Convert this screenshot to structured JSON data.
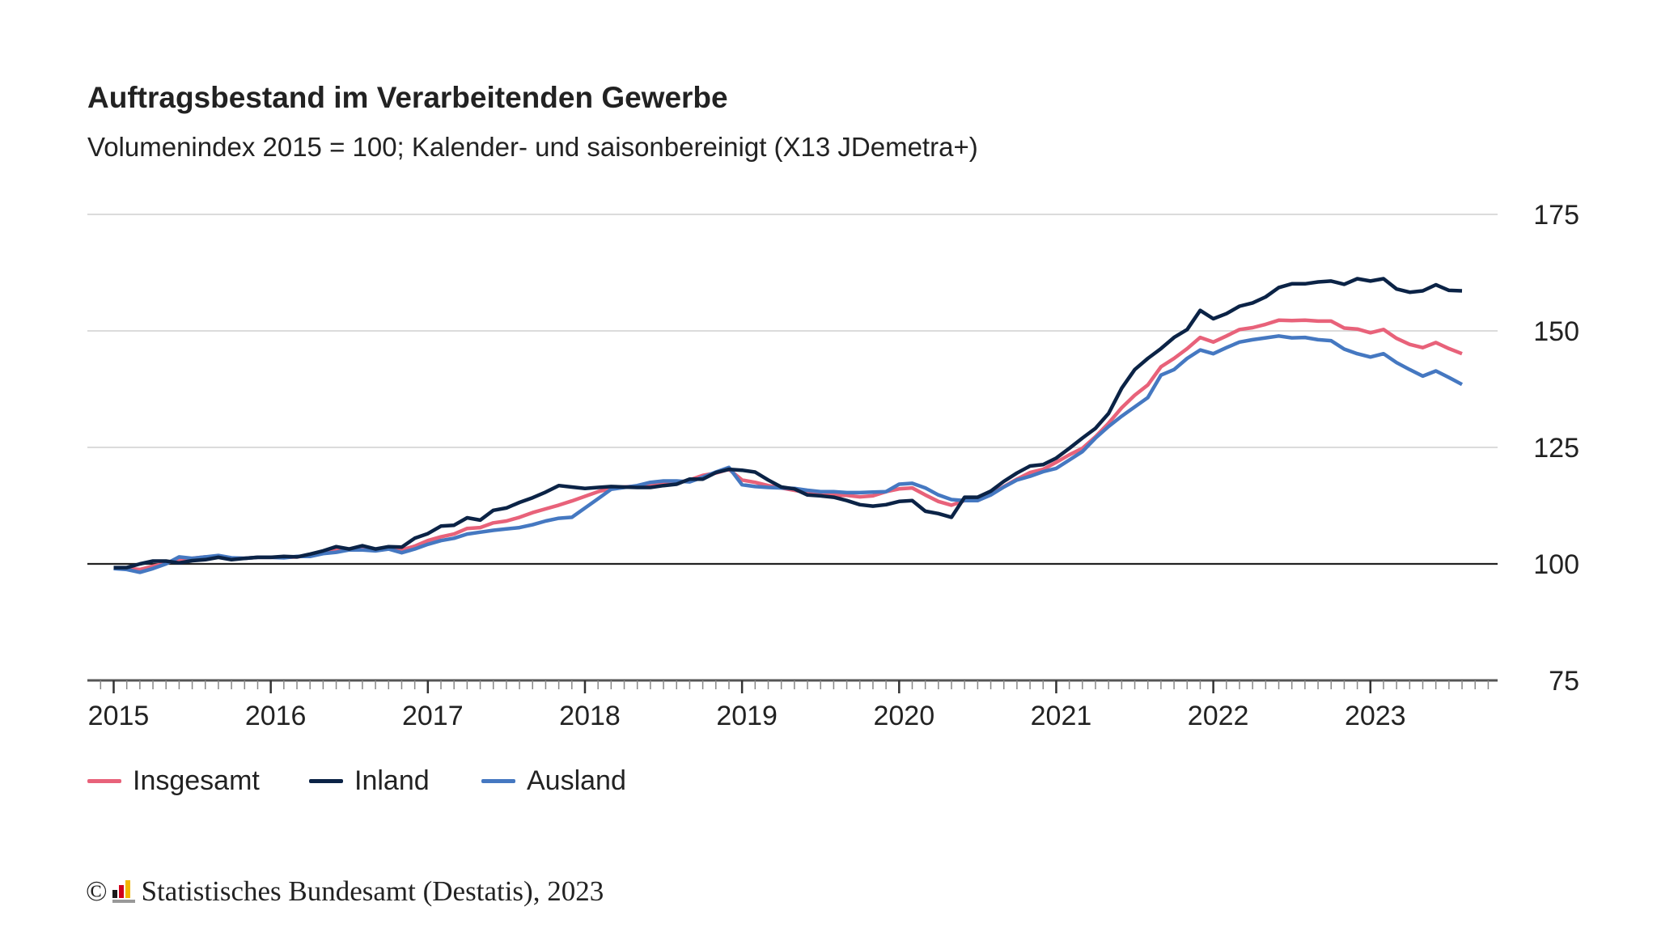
{
  "chart_data": {
    "type": "line",
    "title": "Auftragsbestand im Verarbeitenden Gewerbe",
    "subtitle": "Volumenindex 2015 = 100; Kalender- und saisonbereinigt (X13 JDemetra+)",
    "x_start": "2015-01",
    "x_end": "2023-08",
    "x_frequency": "monthly",
    "x_tick_labels": [
      "2015",
      "2016",
      "2017",
      "2018",
      "2019",
      "2020",
      "2021",
      "2022",
      "2023"
    ],
    "y_tick_labels": [
      "175",
      "150",
      "125",
      "100",
      "75"
    ],
    "y_ticks": [
      175,
      150,
      125,
      100,
      75
    ],
    "ylim": [
      75,
      175
    ],
    "reference_line": 100,
    "grid": true,
    "legend_position": "bottom-left",
    "series": [
      {
        "name": "Insgesamt",
        "color": "#e8627a",
        "values": [
          99.0,
          99.0,
          98.8,
          99.5,
          100.2,
          100.9,
          101.2,
          101.5,
          101.5,
          101.2,
          101.2,
          101.4,
          101.4,
          101.4,
          101.5,
          101.9,
          102.5,
          103.0,
          103.1,
          103.3,
          103.0,
          103.4,
          103.0,
          103.8,
          105.0,
          105.8,
          106.4,
          107.6,
          107.8,
          108.8,
          109.2,
          110.0,
          111.0,
          111.8,
          112.6,
          113.5,
          114.5,
          115.5,
          116.2,
          116.5,
          116.7,
          117.0,
          117.2,
          117.4,
          118.0,
          119.0,
          119.5,
          120.3,
          118.0,
          117.5,
          116.8,
          116.3,
          115.8,
          115.3,
          115.0,
          114.7,
          114.7,
          114.4,
          114.6,
          115.5,
          116.1,
          116.3,
          114.8,
          113.4,
          112.6,
          113.6,
          113.6,
          115.0,
          116.6,
          118.2,
          119.6,
          120.3,
          121.8,
          123.4,
          124.8,
          127.3,
          130.2,
          133.5,
          136.2,
          138.4,
          142.3,
          144.1,
          146.2,
          148.6,
          147.6,
          148.9,
          150.3,
          150.7,
          151.4,
          152.3,
          152.2,
          152.3,
          152.1,
          152.1,
          150.6,
          150.4,
          149.6,
          150.3,
          148.4,
          147.1,
          146.4,
          147.5,
          146.2,
          145.1
        ]
      },
      {
        "name": "Inland",
        "color": "#0b2346",
        "values": [
          99.2,
          99.2,
          100.0,
          100.6,
          100.6,
          100.2,
          100.7,
          100.9,
          101.4,
          100.9,
          101.2,
          101.4,
          101.4,
          101.6,
          101.5,
          102.1,
          102.8,
          103.7,
          103.2,
          103.9,
          103.2,
          103.7,
          103.6,
          105.5,
          106.5,
          108.1,
          108.3,
          109.9,
          109.4,
          111.5,
          112.0,
          113.2,
          114.2,
          115.4,
          116.8,
          116.5,
          116.2,
          116.4,
          116.6,
          116.5,
          116.4,
          116.4,
          116.8,
          117.1,
          118.2,
          118.2,
          119.6,
          120.3,
          120.1,
          119.7,
          118.0,
          116.5,
          116.1,
          114.8,
          114.6,
          114.3,
          113.6,
          112.7,
          112.4,
          112.7,
          113.4,
          113.6,
          111.3,
          110.8,
          110.0,
          114.3,
          114.3,
          115.6,
          117.7,
          119.5,
          121.0,
          121.3,
          122.7,
          124.8,
          127.0,
          129.1,
          132.3,
          137.7,
          141.7,
          144.1,
          146.2,
          148.6,
          150.3,
          154.4,
          152.6,
          153.7,
          155.3,
          156.0,
          157.3,
          159.3,
          160.1,
          160.1,
          160.5,
          160.7,
          160.0,
          161.2,
          160.7,
          161.2,
          159.0,
          158.3,
          158.6,
          159.9,
          158.7,
          158.6
        ]
      },
      {
        "name": "Ausland",
        "color": "#4578c1",
        "values": [
          99.0,
          98.8,
          98.2,
          99.0,
          100.0,
          101.5,
          101.2,
          101.5,
          101.8,
          101.3,
          101.2,
          101.4,
          101.4,
          101.3,
          101.6,
          101.6,
          102.2,
          102.5,
          103.0,
          103.0,
          102.8,
          103.2,
          102.4,
          103.2,
          104.2,
          105.0,
          105.5,
          106.4,
          106.8,
          107.2,
          107.5,
          107.8,
          108.4,
          109.2,
          109.8,
          110.0,
          112.0,
          114.0,
          116.0,
          116.4,
          116.8,
          117.5,
          117.8,
          117.8,
          117.6,
          118.6,
          119.7,
          120.7,
          117.0,
          116.6,
          116.4,
          116.3,
          116.2,
          115.8,
          115.5,
          115.5,
          115.3,
          115.3,
          115.4,
          115.5,
          117.1,
          117.3,
          116.3,
          114.8,
          113.8,
          113.6,
          113.6,
          114.8,
          116.5,
          118.0,
          118.8,
          119.8,
          120.5,
          122.3,
          124.1,
          127.0,
          129.5,
          131.7,
          133.7,
          135.7,
          140.5,
          141.7,
          144.1,
          145.9,
          145.1,
          146.4,
          147.6,
          148.1,
          148.5,
          148.9,
          148.5,
          148.6,
          148.1,
          147.9,
          146.1,
          145.1,
          144.4,
          145.1,
          143.2,
          141.7,
          140.3,
          141.4,
          140.0,
          138.5
        ]
      }
    ]
  },
  "footer": {
    "copyright_symbol": "©",
    "text": "Statistisches Bundesamt (Destatis), 2023",
    "logo": "destatis-logo"
  }
}
